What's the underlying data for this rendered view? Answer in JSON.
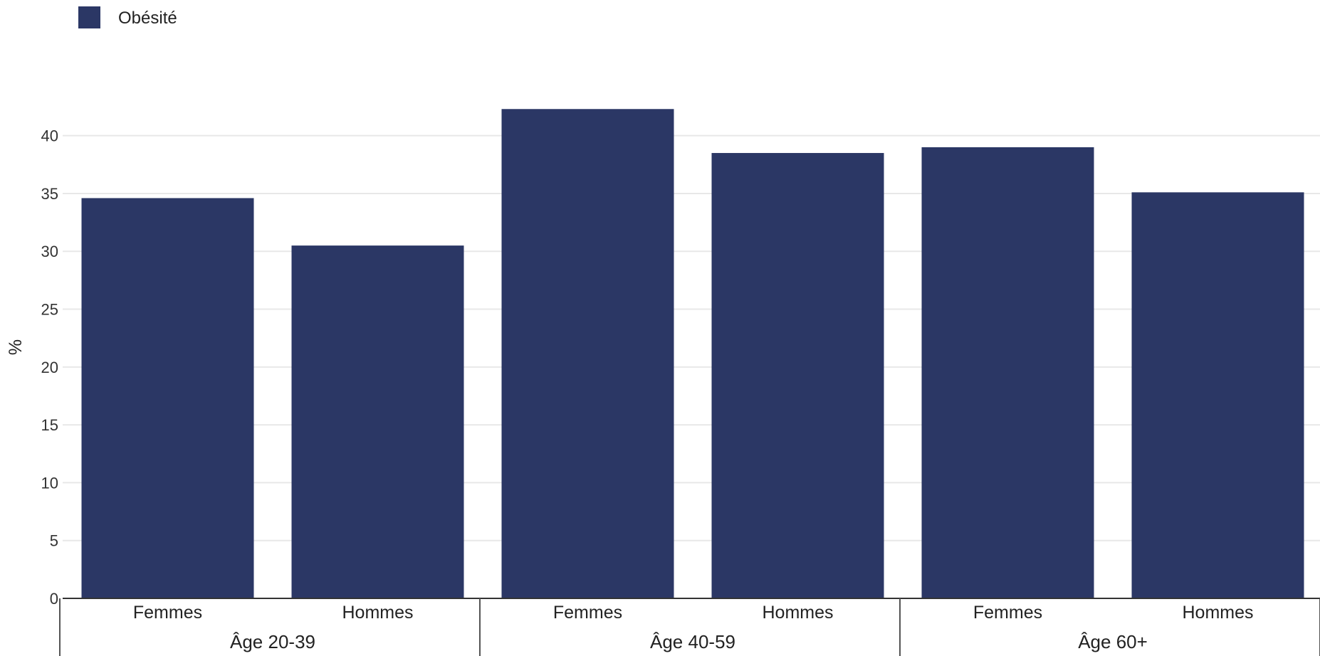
{
  "chart_data": {
    "type": "bar",
    "ylabel": "%",
    "ylim": [
      0,
      42.5
    ],
    "yticks": [
      0,
      5,
      10,
      15,
      20,
      25,
      30,
      35,
      40
    ],
    "grid": true,
    "legend_position": "top-left",
    "groups": [
      "Âge 20-39",
      "Âge 40-59",
      "Âge 60+"
    ],
    "categories": [
      "Femmes",
      "Hommes",
      "Femmes",
      "Hommes",
      "Femmes",
      "Hommes"
    ],
    "series": [
      {
        "name": "Obésité",
        "color": "#2b3765",
        "values": [
          34.6,
          30.5,
          42.3,
          38.5,
          39.0,
          35.1
        ]
      }
    ]
  }
}
